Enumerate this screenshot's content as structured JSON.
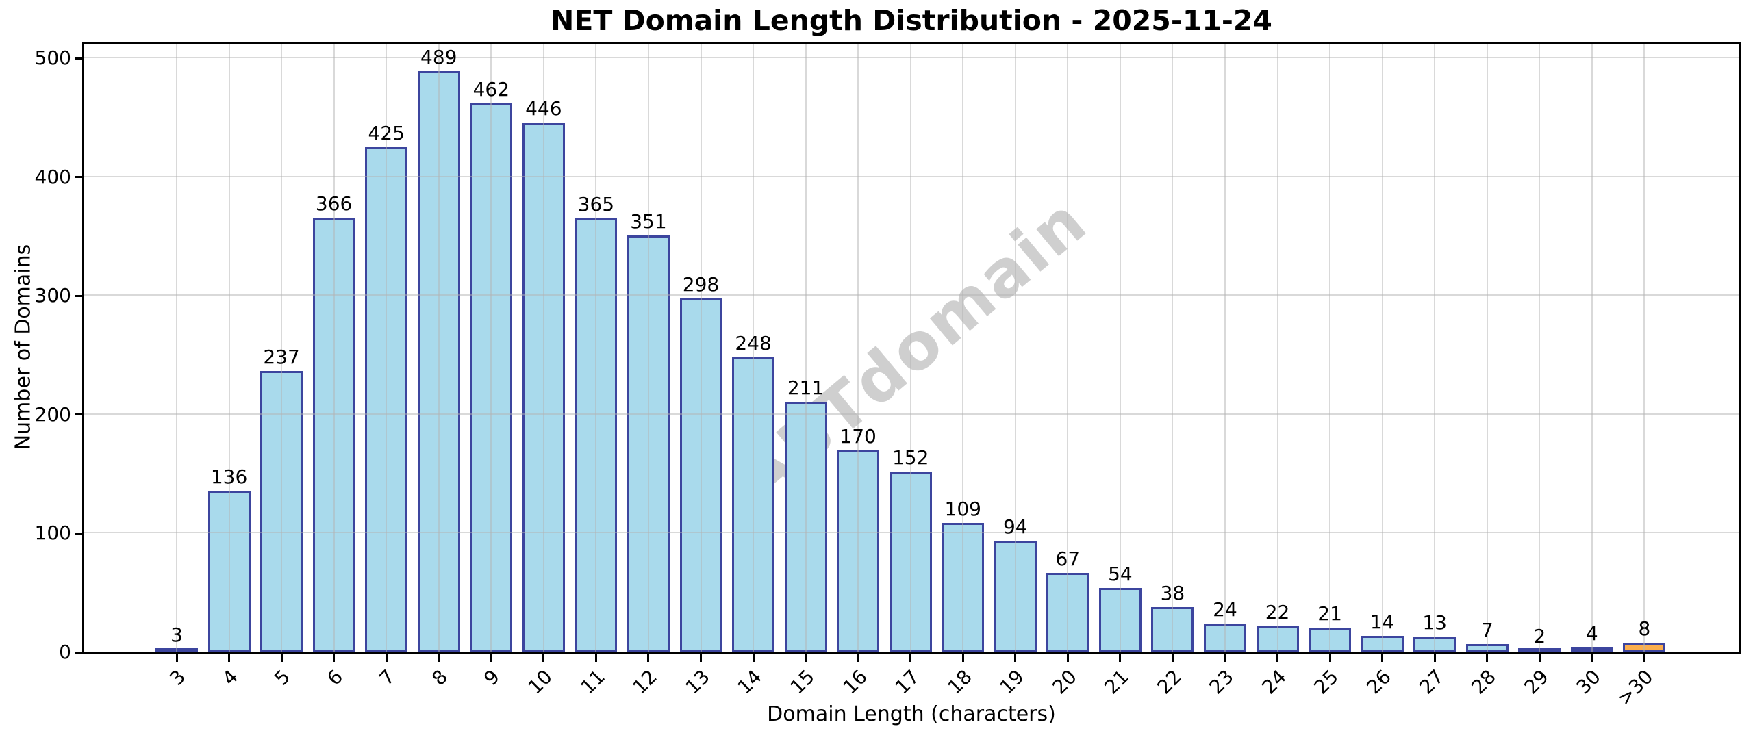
{
  "chart_data": {
    "type": "bar",
    "title": "NET Domain Length Distribution - 2025-11-24",
    "xlabel": "Domain Length (characters)",
    "ylabel": "Number of Domains",
    "categories": [
      "3",
      "4",
      "5",
      "6",
      "7",
      "8",
      "9",
      "10",
      "11",
      "12",
      "13",
      "14",
      "15",
      "16",
      "17",
      "18",
      "19",
      "20",
      "21",
      "22",
      "23",
      "24",
      "25",
      "26",
      "27",
      "28",
      "29",
      "30",
      ">30"
    ],
    "values": [
      3,
      136,
      237,
      366,
      425,
      489,
      462,
      446,
      365,
      351,
      298,
      248,
      211,
      170,
      152,
      109,
      94,
      67,
      54,
      38,
      24,
      22,
      21,
      14,
      13,
      7,
      2,
      4,
      8
    ],
    "ylim": [
      0,
      500
    ],
    "yticks": [
      0,
      100,
      200,
      300,
      400,
      500
    ],
    "grid": true,
    "legend": "none",
    "bar_color": "#A9DAEC",
    "bar_edge_color": "#3C459E",
    "highlight_index": 28,
    "highlight_color": "#FBAE4D",
    "grid_color": "rgba(180,180,180,0.5)",
    "watermark": "ABTdomain",
    "watermark_color": "rgba(155,155,155,0.48)",
    "value_labels_shown": true
  }
}
